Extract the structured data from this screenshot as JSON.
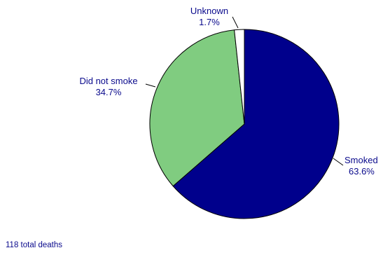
{
  "chart_data": {
    "type": "pie",
    "slices": [
      {
        "label": "Smoked",
        "percent_label": "63.6%",
        "value": 63.6,
        "color": "#00008c"
      },
      {
        "label": "Did not smoke",
        "percent_label": "34.7%",
        "value": 34.7,
        "color": "#80cc80"
      },
      {
        "label": "Unknown",
        "percent_label": "1.7%",
        "value": 1.7,
        "color": "#ffffff"
      }
    ],
    "start_angle_deg": 0,
    "direction": "clockwise",
    "outline_color": "#000000",
    "label_color": "#0a0a8c"
  },
  "footnote": "118 total deaths"
}
